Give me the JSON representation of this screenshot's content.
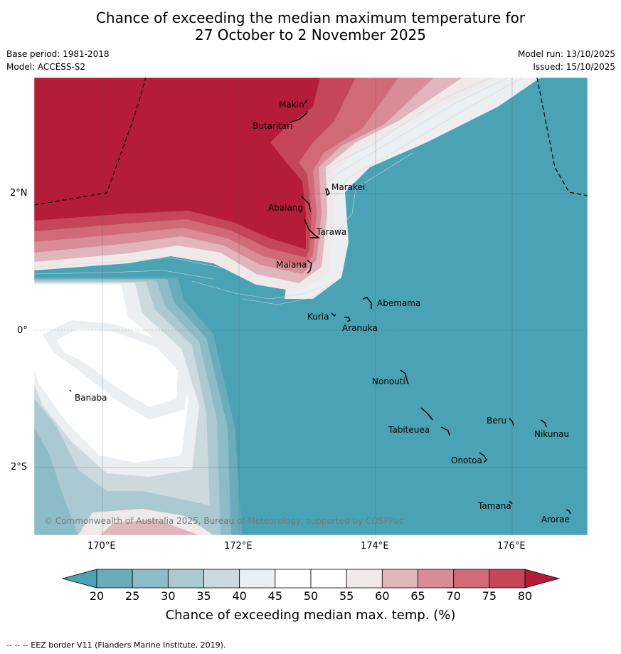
{
  "title_line1": "Chance of exceeding the median maximum temperature for",
  "title_line2": "27 October to 2 November 2025",
  "base_period": "Base period: 1981-2018",
  "model": "Model: ACCESS-S2",
  "model_run": "Model run: 13/10/2025",
  "issued": "Issued: 15/10/2025",
  "lat_labels": [
    "2°N",
    "0°",
    "2°S"
  ],
  "lon_labels": [
    "170°E",
    "172°E",
    "174°E",
    "176°E"
  ],
  "places": [
    "Makin",
    "Butaritari",
    "Marakei",
    "Abaiang",
    "Tarawa",
    "Maiana",
    "Abemama",
    "Kuria",
    "Aranuka",
    "Banaba",
    "Nonouti",
    "Beru",
    "Nikunau",
    "Tabiteuea",
    "Onotoa",
    "Tamana",
    "Arorae"
  ],
  "copyright": "© Commonwealth of Australia 2025, Bureau of Meteorology, supported by COSPPac",
  "colorbar": {
    "ticks": [
      "20",
      "25",
      "30",
      "35",
      "40",
      "45",
      "50",
      "55",
      "60",
      "65",
      "70",
      "75",
      "80"
    ],
    "colors": [
      "#6aacba",
      "#8bbcc7",
      "#aac9d0",
      "#ccdade",
      "#ebeff2",
      "#ffffff",
      "#ffffff",
      "#efe9ea",
      "#e0b5bc",
      "#d88c96",
      "#cf6a76",
      "#c44658"
    ],
    "low_color": "#4aa3b4",
    "high_color": "#b41c3a",
    "title": "Chance of exceeding median max. temp. (%)"
  },
  "footer": "--  --  -- EEZ border V11 (Flanders Marine Institute, 2019)."
}
